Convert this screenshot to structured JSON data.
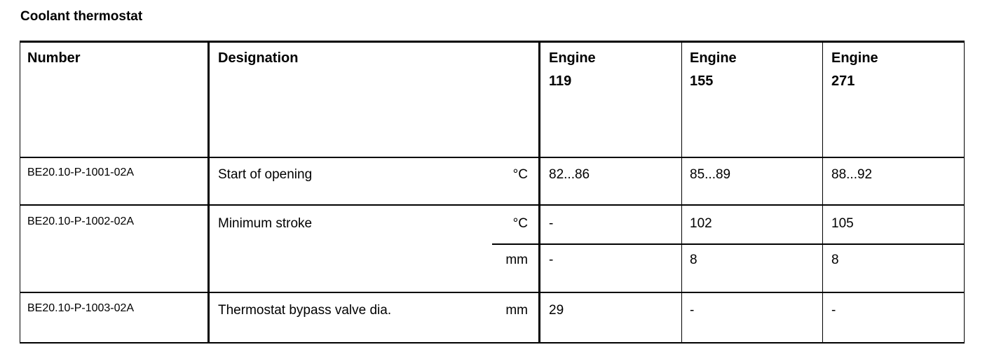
{
  "title": "Coolant thermostat",
  "headers": {
    "number": "Number",
    "designation": "Designation",
    "engines": [
      [
        "Engine",
        "119"
      ],
      [
        "Engine",
        "155"
      ],
      [
        "Engine",
        "271"
      ]
    ]
  },
  "rows": [
    {
      "number": "BE20.10-P-1001-02A",
      "designation": "Start of opening",
      "lines": [
        {
          "unit": "°C",
          "values": [
            "82...86",
            "85...89",
            "88...92"
          ]
        }
      ]
    },
    {
      "number": "BE20.10-P-1002-02A",
      "designation": "Minimum stroke",
      "lines": [
        {
          "unit": "°C",
          "values": [
            "-",
            "102",
            "105"
          ]
        },
        {
          "unit": "mm",
          "values": [
            "-",
            "8",
            "8"
          ]
        }
      ]
    },
    {
      "number": "BE20.10-P-1003-02A",
      "designation": "Thermostat bypass valve dia.",
      "lines": [
        {
          "unit": "mm",
          "values": [
            "29",
            "-",
            "-"
          ]
        }
      ]
    }
  ]
}
